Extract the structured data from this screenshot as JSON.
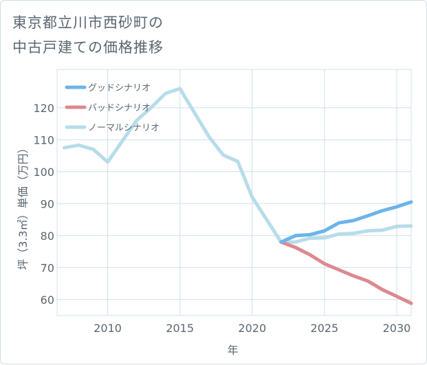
{
  "title": {
    "line1": "東京都立川市西砂町の",
    "line2": "中古戸建ての価格推移"
  },
  "colors": {
    "good": "#6cb4ec",
    "bad": "#de8890",
    "normal": "#b7dcea",
    "grid": "#cfe0e8",
    "text": "#5a6670"
  },
  "chart_data": {
    "type": "line",
    "xlabel": "年",
    "ylabel": "坪（3.3㎡）単価（万円）",
    "xlim": [
      2006.5,
      2031
    ],
    "ylim": [
      55,
      132
    ],
    "xticks": [
      2010,
      2015,
      2020,
      2025,
      2030
    ],
    "yticks": [
      60,
      70,
      80,
      90,
      100,
      110,
      120
    ],
    "grid": true,
    "legend_position": "top-left",
    "series": [
      {
        "name": "グッドシナリオ",
        "color_key": "good",
        "points": [
          [
            2022,
            78
          ],
          [
            2023,
            80
          ],
          [
            2024,
            80.3
          ],
          [
            2025,
            81.5
          ],
          [
            2026,
            84
          ],
          [
            2027,
            84.7
          ],
          [
            2028,
            86.2
          ],
          [
            2029,
            87.8
          ],
          [
            2030,
            89
          ],
          [
            2031,
            90.5
          ]
        ]
      },
      {
        "name": "バッドシナリオ",
        "color_key": "bad",
        "points": [
          [
            2022,
            78
          ],
          [
            2023,
            76.3
          ],
          [
            2024,
            74
          ],
          [
            2025,
            71.2
          ],
          [
            2026,
            69.3
          ],
          [
            2027,
            67.4
          ],
          [
            2028,
            65.8
          ],
          [
            2029,
            63.1
          ],
          [
            2030,
            61
          ],
          [
            2031,
            58.8
          ]
        ]
      },
      {
        "name": "ノーマルシナリオ",
        "color_key": "normal",
        "points": [
          [
            2007,
            107.5
          ],
          [
            2008,
            108.3
          ],
          [
            2009,
            107
          ],
          [
            2010,
            103
          ],
          [
            2011,
            109.5
          ],
          [
            2012,
            116
          ],
          [
            2013,
            120
          ],
          [
            2014,
            124.5
          ],
          [
            2015,
            126
          ],
          [
            2016,
            118.5
          ],
          [
            2017,
            111
          ],
          [
            2018,
            105.2
          ],
          [
            2019,
            103.2
          ],
          [
            2020,
            92
          ],
          [
            2021,
            85
          ],
          [
            2022,
            78
          ],
          [
            2023,
            78
          ],
          [
            2024,
            79.2
          ],
          [
            2025,
            79.3
          ],
          [
            2026,
            80.5
          ],
          [
            2027,
            80.7
          ],
          [
            2028,
            81.5
          ],
          [
            2029,
            81.7
          ],
          [
            2030,
            82.9
          ],
          [
            2031,
            83
          ]
        ]
      }
    ]
  }
}
